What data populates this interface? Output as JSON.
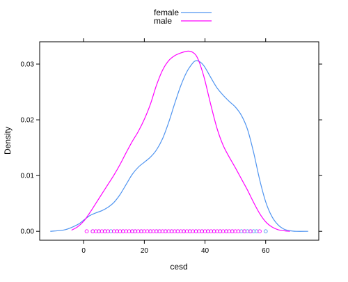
{
  "chart_data": {
    "type": "line",
    "xlabel": "cesd",
    "ylabel": "Density",
    "xlim": [
      -14.5,
      77.5
    ],
    "ylim": [
      -0.0016,
      0.034
    ],
    "x_ticks": [
      0,
      20,
      40,
      60
    ],
    "y_ticks": [
      0.0,
      0.01,
      0.02,
      0.03
    ],
    "y_tick_labels": [
      "0.00",
      "0.01",
      "0.02",
      "0.03"
    ],
    "grid": false,
    "legend_position": "top-center",
    "series": [
      {
        "name": "female",
        "color": "#4f94f0",
        "x": [
          -11,
          -6,
          -2,
          0,
          2,
          4,
          6,
          8,
          10,
          12,
          14,
          16,
          18,
          20,
          22,
          24,
          26,
          28,
          30,
          32,
          34,
          36,
          37,
          38,
          39,
          40,
          42,
          44,
          46,
          48,
          50,
          52,
          54,
          56,
          58,
          60,
          62,
          64,
          66,
          68,
          70,
          74
        ],
        "y": [
          0.0,
          0.0003,
          0.0012,
          0.002,
          0.0028,
          0.0033,
          0.0037,
          0.0043,
          0.0052,
          0.0066,
          0.0084,
          0.0102,
          0.0115,
          0.0124,
          0.0133,
          0.0146,
          0.0166,
          0.0195,
          0.0229,
          0.0261,
          0.0286,
          0.0302,
          0.0306,
          0.0305,
          0.0301,
          0.0294,
          0.0275,
          0.0257,
          0.0244,
          0.0233,
          0.0223,
          0.0208,
          0.0183,
          0.0142,
          0.0093,
          0.0053,
          0.0027,
          0.0012,
          0.0004,
          0.0001,
          0.0,
          0.0
        ],
        "rug": [
          3,
          5,
          7,
          9,
          11,
          13,
          16,
          17,
          19,
          22,
          24,
          25,
          27,
          29,
          31,
          33,
          35,
          37,
          39,
          41,
          43,
          45,
          47,
          49,
          52,
          53,
          54,
          55,
          56,
          57,
          60
        ]
      },
      {
        "name": "male",
        "color": "#ff00ff",
        "x": [
          -4,
          -2,
          0,
          2,
          4,
          6,
          8,
          10,
          12,
          14,
          16,
          18,
          20,
          22,
          24,
          26,
          28,
          30,
          32,
          34,
          35,
          36,
          37,
          38,
          39,
          40,
          42,
          44,
          46,
          48,
          50,
          52,
          54,
          56,
          58,
          60,
          62,
          64,
          66,
          68
        ],
        "y": [
          0.0002,
          0.0008,
          0.0018,
          0.0033,
          0.005,
          0.0067,
          0.0084,
          0.0101,
          0.012,
          0.0141,
          0.0161,
          0.0179,
          0.0201,
          0.0228,
          0.0262,
          0.0289,
          0.0306,
          0.0315,
          0.032,
          0.0323,
          0.0323,
          0.0321,
          0.0316,
          0.0305,
          0.0289,
          0.027,
          0.0225,
          0.0184,
          0.0154,
          0.0133,
          0.0114,
          0.0094,
          0.0074,
          0.0052,
          0.0032,
          0.0017,
          0.0008,
          0.0003,
          0.0001,
          0.0
        ],
        "rug": [
          1,
          3,
          4,
          5,
          6,
          7,
          8,
          10,
          11,
          12,
          13,
          14,
          15,
          16,
          17,
          18,
          19,
          20,
          21,
          22,
          23,
          24,
          25,
          26,
          27,
          28,
          29,
          30,
          31,
          32,
          33,
          34,
          35,
          36,
          37,
          38,
          39,
          40,
          41,
          42,
          43,
          44,
          45,
          46,
          47,
          48,
          49,
          50,
          51,
          53,
          55,
          58
        ]
      }
    ]
  }
}
